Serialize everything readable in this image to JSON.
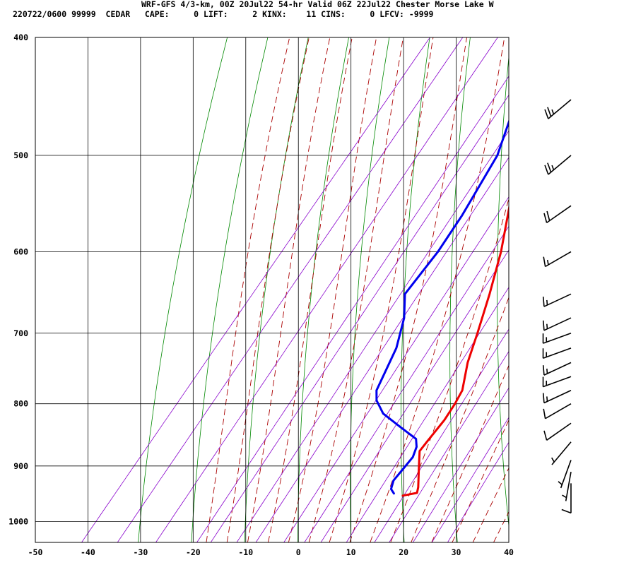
{
  "header": {
    "line1": "WRF-GFS 4/3-km, 00Z 20Jul22 54-hr Valid 06Z 22Jul22 Chester Morse Lake W",
    "line2": "220722/0600 99999  CEDAR   CAPE:     0 LIFT:     2 KINX:    11 CINS:     0 LFCV: -9999"
  },
  "chart_data": {
    "type": "line",
    "chart_kind": "skew-T log-P sounding",
    "xlim": [
      -50,
      40
    ],
    "ylim": [
      1040,
      400
    ],
    "y_scale": "log",
    "x_ticks": [
      -50,
      -40,
      -30,
      -20,
      -10,
      0,
      10,
      20,
      30,
      40
    ],
    "y_ticks": [
      400,
      500,
      600,
      700,
      800,
      900,
      1000
    ],
    "grid": true,
    "colors": {
      "temperature": "#ee0000",
      "dewpoint": "#0000ee",
      "dry_adiabat": "#008800",
      "moist_adiabat": "#aa0000",
      "mixing_ratio": "#8800cc",
      "isotherm_isobar": "#000000"
    },
    "series": [
      {
        "role": "temperature",
        "points": [
          [
            952,
            12.9
          ],
          [
            947,
            15.2
          ],
          [
            937,
            14.6
          ],
          [
            905,
            12.0
          ],
          [
            875,
            9.5
          ],
          [
            860,
            9.5
          ],
          [
            825,
            9.6
          ],
          [
            800,
            9.2
          ],
          [
            780,
            8.6
          ],
          [
            740,
            5.5
          ],
          [
            700,
            3.0
          ],
          [
            650,
            -0.5
          ],
          [
            600,
            -4.6
          ],
          [
            550,
            -9.8
          ],
          [
            500,
            -15.6
          ],
          [
            475,
            -18.9
          ],
          [
            450,
            -22.0
          ]
        ]
      },
      {
        "role": "dewpoint",
        "points": [
          [
            948,
            10.9
          ],
          [
            940,
            9.7
          ],
          [
            925,
            8.9
          ],
          [
            905,
            9.0
          ],
          [
            885,
            9.1
          ],
          [
            868,
            8.3
          ],
          [
            855,
            7.0
          ],
          [
            835,
            2.0
          ],
          [
            815,
            -3.0
          ],
          [
            795,
            -6.2
          ],
          [
            780,
            -7.7
          ],
          [
            720,
            -10.2
          ],
          [
            680,
            -13.2
          ],
          [
            650,
            -16.6
          ],
          [
            600,
            -16.6
          ],
          [
            560,
            -17.4
          ],
          [
            500,
            -19.6
          ],
          [
            470,
            -22.3
          ],
          [
            450,
            -24.2
          ]
        ]
      }
    ],
    "wind_barbs": [
      {
        "p": 450,
        "dir": 230,
        "kt": 25
      },
      {
        "p": 500,
        "dir": 230,
        "kt": 25
      },
      {
        "p": 550,
        "dir": 235,
        "kt": 20
      },
      {
        "p": 600,
        "dir": 240,
        "kt": 15
      },
      {
        "p": 650,
        "dir": 245,
        "kt": 15
      },
      {
        "p": 680,
        "dir": 245,
        "kt": 15
      },
      {
        "p": 700,
        "dir": 250,
        "kt": 15
      },
      {
        "p": 720,
        "dir": 250,
        "kt": 15
      },
      {
        "p": 740,
        "dir": 245,
        "kt": 15
      },
      {
        "p": 760,
        "dir": 250,
        "kt": 15
      },
      {
        "p": 780,
        "dir": 245,
        "kt": 15
      },
      {
        "p": 800,
        "dir": 240,
        "kt": 10
      },
      {
        "p": 830,
        "dir": 235,
        "kt": 10
      },
      {
        "p": 860,
        "dir": 220,
        "kt": 5
      },
      {
        "p": 890,
        "dir": 200,
        "kt": 5
      },
      {
        "p": 910,
        "dir": 190,
        "kt": 5
      },
      {
        "p": 930,
        "dir": 180,
        "kt": 10
      }
    ]
  }
}
